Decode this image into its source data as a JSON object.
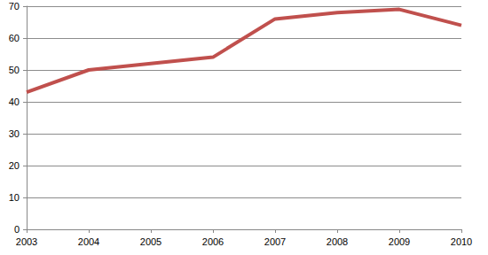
{
  "chart_data": {
    "type": "line",
    "categories": [
      "2003",
      "2004",
      "2005",
      "2006",
      "2007",
      "2008",
      "2009",
      "2010"
    ],
    "values": [
      43,
      50,
      52,
      54,
      66,
      68,
      69,
      64
    ],
    "color": "#c0504d",
    "ylim": [
      0,
      70
    ],
    "yticks": [
      0,
      10,
      20,
      30,
      40,
      50,
      60,
      70
    ],
    "grid": true
  }
}
